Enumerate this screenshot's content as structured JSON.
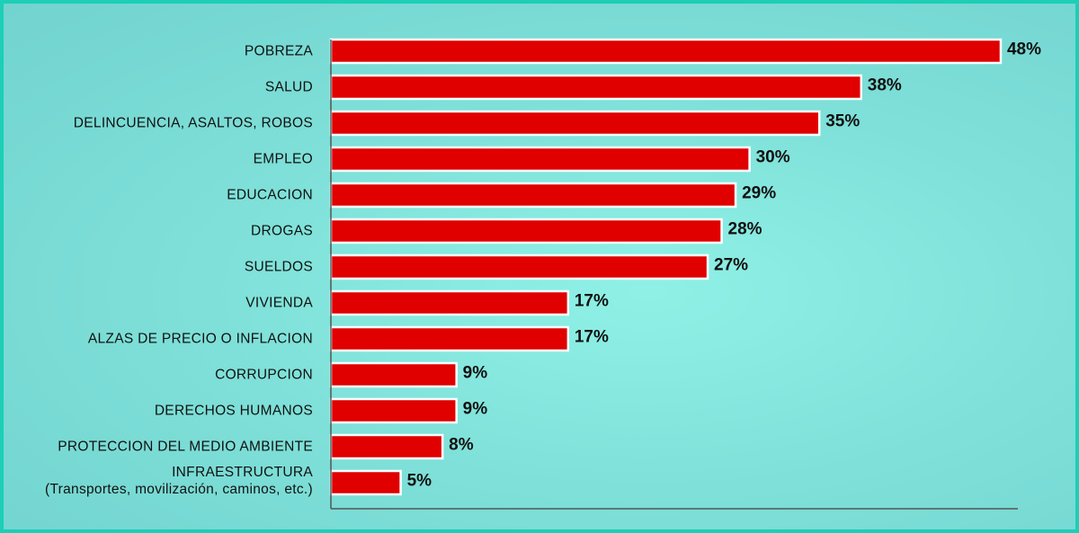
{
  "chart_data": {
    "type": "bar",
    "orientation": "horizontal",
    "title": "",
    "xlabel": "",
    "ylabel": "",
    "xlim": [
      0,
      50
    ],
    "grid": false,
    "legend": "none",
    "bar_color": "#e00000",
    "background_color": "#80e4dc",
    "border_color": "#1ccfb6",
    "categories": [
      [
        "POBREZA"
      ],
      [
        "SALUD"
      ],
      [
        "DELINCUENCIA, ASALTOS, ROBOS"
      ],
      [
        "EMPLEO"
      ],
      [
        "EDUCACION"
      ],
      [
        "DROGAS"
      ],
      [
        "SUELDOS"
      ],
      [
        "VIVIENDA"
      ],
      [
        "ALZAS DE PRECIO O INFLACION"
      ],
      [
        "CORRUPCION"
      ],
      [
        "DERECHOS HUMANOS"
      ],
      [
        "PROTECCION DEL MEDIO AMBIENTE"
      ],
      [
        "INFRAESTRUCTURA",
        "(Transportes, movilización, caminos, etc.)"
      ]
    ],
    "values": [
      48,
      38,
      35,
      30,
      29,
      28,
      27,
      17,
      17,
      9,
      9,
      8,
      5
    ],
    "value_labels": [
      "48%",
      "38%",
      "35%",
      "30%",
      "29%",
      "28%",
      "27%",
      "17%",
      "17%",
      "9%",
      "9%",
      "8%",
      "5%"
    ]
  }
}
